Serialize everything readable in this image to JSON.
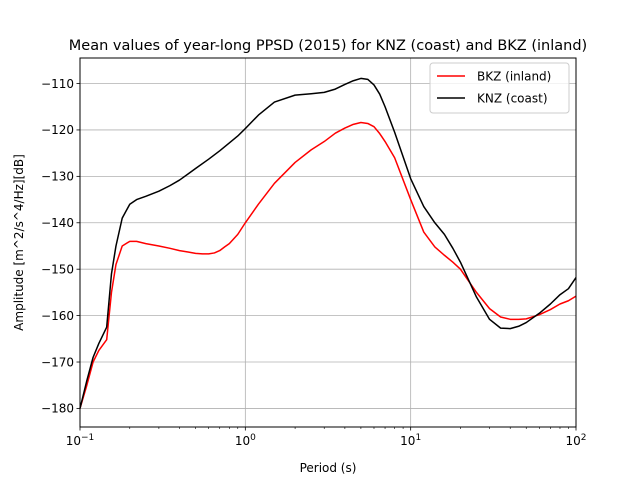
{
  "chart_data": {
    "type": "line",
    "title": "Mean values of year-long PPSD (2015) for KNZ (coast) and BKZ (inland)",
    "xlabel": "Period (s)",
    "ylabel": "Amplitude [m^2/s^4/Hz][dB]",
    "x_scale": "log",
    "xlim": [
      0.1,
      100
    ],
    "ylim": [
      -184,
      -104.5
    ],
    "grid": true,
    "legend_position": "top-right",
    "x_ticks": [
      {
        "value": 0.1,
        "base": "10",
        "exp": "−1"
      },
      {
        "value": 1,
        "base": "10",
        "exp": "0"
      },
      {
        "value": 10,
        "base": "10",
        "exp": "1"
      },
      {
        "value": 100,
        "base": "10",
        "exp": "2"
      }
    ],
    "y_ticks": [
      {
        "value": -110,
        "label": "−110"
      },
      {
        "value": -120,
        "label": "−120"
      },
      {
        "value": -130,
        "label": "−130"
      },
      {
        "value": -140,
        "label": "−140"
      },
      {
        "value": -150,
        "label": "−150"
      },
      {
        "value": -160,
        "label": "−160"
      },
      {
        "value": -170,
        "label": "−170"
      },
      {
        "value": -180,
        "label": "−180"
      }
    ],
    "series": [
      {
        "name": "BKZ (inland)",
        "color": "#ff0000",
        "x": [
          0.1,
          0.11,
          0.12,
          0.13,
          0.145,
          0.155,
          0.165,
          0.18,
          0.2,
          0.22,
          0.25,
          0.3,
          0.35,
          0.4,
          0.45,
          0.5,
          0.55,
          0.6,
          0.65,
          0.7,
          0.75,
          0.8,
          0.9,
          1.0,
          1.2,
          1.5,
          2.0,
          2.5,
          3.0,
          3.5,
          4.0,
          4.5,
          5.0,
          5.5,
          6.0,
          6.5,
          7.0,
          8.0,
          10,
          12,
          14,
          16,
          18,
          20,
          25,
          30,
          35,
          40,
          45,
          50,
          60,
          70,
          80,
          90,
          100
        ],
        "y": [
          -180,
          -175,
          -170,
          -167.5,
          -165.2,
          -155,
          -149,
          -145,
          -144,
          -144,
          -144.5,
          -145,
          -145.5,
          -146,
          -146.3,
          -146.6,
          -146.7,
          -146.7,
          -146.5,
          -146,
          -145.2,
          -144.5,
          -142.5,
          -140,
          -136,
          -131.5,
          -127,
          -124.3,
          -122.5,
          -120.7,
          -119.6,
          -118.8,
          -118.4,
          -118.6,
          -119.3,
          -120.8,
          -122.5,
          -126,
          -135,
          -142,
          -145.2,
          -147,
          -148.5,
          -150,
          -155,
          -158.5,
          -160.3,
          -160.8,
          -160.8,
          -160.7,
          -159.8,
          -158.7,
          -157.5,
          -156.8,
          -155.8
        ]
      },
      {
        "name": "KNZ (coast)",
        "color": "#000000",
        "x": [
          0.1,
          0.11,
          0.12,
          0.13,
          0.145,
          0.155,
          0.165,
          0.18,
          0.2,
          0.22,
          0.25,
          0.3,
          0.35,
          0.4,
          0.45,
          0.5,
          0.6,
          0.7,
          0.8,
          0.9,
          1.0,
          1.2,
          1.5,
          2.0,
          2.5,
          3.0,
          3.5,
          4.0,
          4.5,
          5.0,
          5.5,
          6.0,
          6.5,
          7.0,
          8.0,
          10,
          12,
          14,
          16,
          18,
          20,
          25,
          30,
          35,
          40,
          45,
          50,
          60,
          70,
          80,
          90,
          100
        ],
        "y": [
          -180,
          -174,
          -169,
          -166,
          -162.5,
          -151,
          -145,
          -139,
          -136,
          -135,
          -134.3,
          -133.2,
          -132,
          -130.8,
          -129.5,
          -128.3,
          -126.3,
          -124.5,
          -122.8,
          -121.3,
          -119.7,
          -116.8,
          -114,
          -112.5,
          -112.2,
          -111.9,
          -111.2,
          -110.2,
          -109.4,
          -108.9,
          -109.1,
          -110.3,
          -112.3,
          -115,
          -120.5,
          -130.5,
          -136.5,
          -140,
          -142.5,
          -145.5,
          -148.5,
          -156,
          -160.8,
          -162.7,
          -162.8,
          -162.3,
          -161.5,
          -159.5,
          -157.5,
          -155.5,
          -154.2,
          -151.8
        ]
      }
    ]
  }
}
